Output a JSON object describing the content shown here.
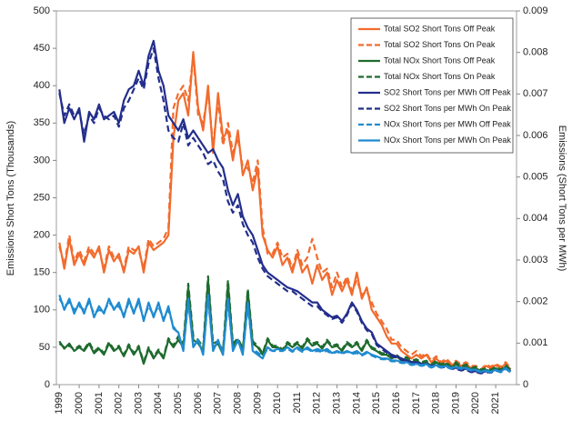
{
  "chart_data": {
    "type": "line",
    "ylabel": "Emissions Short Tons (Thousands)",
    "y2label": "Emissions (Short Tons per MWh)",
    "xlim": [
      1998.85,
      2022.05
    ],
    "xticks": [
      1999,
      2000,
      2001,
      2002,
      2003,
      2004,
      2005,
      2006,
      2007,
      2008,
      2009,
      2010,
      2011,
      2012,
      2013,
      2014,
      2015,
      2016,
      2017,
      2018,
      2019,
      2020,
      2021
    ],
    "ylim": [
      0,
      500
    ],
    "yticks": [
      0,
      50,
      100,
      150,
      200,
      250,
      300,
      350,
      400,
      450,
      500
    ],
    "y2lim": [
      0,
      0.009
    ],
    "y2ticks": [
      0,
      0.001,
      0.002,
      0.003,
      0.004,
      0.005,
      0.006,
      0.007,
      0.008,
      0.009
    ],
    "legend": "upper-right",
    "x": [
      1999,
      1999.25,
      1999.5,
      1999.75,
      2000,
      2000.25,
      2000.5,
      2000.75,
      2001,
      2001.25,
      2001.5,
      2001.75,
      2002,
      2002.25,
      2002.5,
      2002.75,
      2003,
      2003.25,
      2003.5,
      2003.75,
      2004,
      2004.25,
      2004.5,
      2004.75,
      2005,
      2005.25,
      2005.5,
      2005.75,
      2006,
      2006.25,
      2006.5,
      2006.75,
      2007,
      2007.25,
      2007.5,
      2007.75,
      2008,
      2008.25,
      2008.5,
      2008.75,
      2009,
      2009.25,
      2009.5,
      2009.75,
      2010,
      2010.25,
      2010.5,
      2010.75,
      2011,
      2011.25,
      2011.5,
      2011.75,
      2012,
      2012.25,
      2012.5,
      2012.75,
      2013,
      2013.25,
      2013.5,
      2013.75,
      2014,
      2014.25,
      2014.5,
      2014.75,
      2015,
      2015.25,
      2015.5,
      2015.75,
      2016,
      2016.25,
      2016.5,
      2016.75,
      2017,
      2017.25,
      2017.5,
      2017.75,
      2018,
      2018.25,
      2018.5,
      2018.75,
      2019,
      2019.25,
      2019.5,
      2019.75,
      2020,
      2020.25,
      2020.5,
      2020.75,
      2021,
      2021.25,
      2021.5,
      2021.75
    ],
    "series": [
      {
        "name": "Total SO2 Short Tons Off Peak",
        "color": "#f26b2d",
        "dashed": false,
        "values": [
          190,
          155,
          195,
          160,
          175,
          160,
          180,
          170,
          185,
          150,
          180,
          165,
          175,
          150,
          180,
          175,
          185,
          150,
          190,
          180,
          185,
          190,
          200,
          330,
          380,
          390,
          360,
          445,
          370,
          340,
          400,
          310,
          390,
          330,
          340,
          300,
          340,
          280,
          300,
          260,
          290,
          200,
          180,
          170,
          185,
          160,
          170,
          150,
          175,
          150,
          160,
          135,
          160,
          140,
          150,
          120,
          140,
          125,
          140,
          120,
          150,
          115,
          130,
          100,
          90,
          80,
          65,
          55,
          55,
          45,
          40,
          35,
          40,
          35,
          40,
          30,
          35,
          28,
          32,
          25,
          30,
          25,
          28,
          22,
          22,
          18,
          25,
          22,
          26,
          22,
          28,
          20
        ]
      },
      {
        "name": "Total SO2 Short Tons On Peak",
        "color": "#f26b2d",
        "dashed": true,
        "values": [
          185,
          160,
          200,
          165,
          180,
          165,
          185,
          175,
          180,
          155,
          185,
          170,
          170,
          155,
          185,
          180,
          180,
          155,
          195,
          185,
          190,
          195,
          210,
          370,
          390,
          400,
          380,
          440,
          360,
          350,
          390,
          320,
          380,
          320,
          350,
          310,
          330,
          290,
          290,
          270,
          300,
          210,
          175,
          175,
          190,
          170,
          175,
          155,
          180,
          160,
          170,
          195,
          170,
          150,
          155,
          130,
          150,
          130,
          145,
          125,
          140,
          120,
          125,
          110,
          95,
          85,
          75,
          60,
          60,
          50,
          45,
          40,
          45,
          38,
          42,
          32,
          38,
          30,
          35,
          28,
          32,
          27,
          30,
          25,
          25,
          20,
          27,
          24,
          28,
          24,
          30,
          22
        ]
      },
      {
        "name": "Total NOx Short Tons Off Peak",
        "color": "#1e6b2e",
        "dashed": false,
        "values": [
          58,
          48,
          55,
          45,
          50,
          45,
          55,
          42,
          48,
          40,
          55,
          45,
          50,
          38,
          52,
          40,
          50,
          28,
          48,
          35,
          45,
          35,
          60,
          50,
          60,
          50,
          130,
          60,
          55,
          45,
          140,
          50,
          55,
          40,
          135,
          50,
          60,
          45,
          125,
          55,
          50,
          40,
          60,
          50,
          50,
          45,
          55,
          50,
          55,
          48,
          60,
          52,
          55,
          48,
          58,
          50,
          52,
          45,
          55,
          50,
          55,
          45,
          58,
          48,
          45,
          40,
          40,
          35,
          38,
          32,
          35,
          30,
          32,
          28,
          30,
          25,
          30,
          25,
          28,
          22,
          28,
          22,
          25,
          20,
          22,
          18,
          20,
          18,
          22,
          18,
          24,
          18
        ]
      },
      {
        "name": "Total NOx Short Tons On Peak",
        "color": "#1e6b2e",
        "dashed": true,
        "values": [
          55,
          50,
          52,
          47,
          52,
          47,
          57,
          44,
          50,
          42,
          57,
          47,
          52,
          40,
          54,
          42,
          52,
          30,
          50,
          37,
          47,
          37,
          62,
          52,
          65,
          55,
          135,
          65,
          60,
          50,
          145,
          55,
          58,
          45,
          140,
          55,
          62,
          48,
          128,
          58,
          52,
          42,
          62,
          52,
          52,
          47,
          57,
          52,
          57,
          50,
          62,
          55,
          57,
          50,
          60,
          52,
          54,
          47,
          57,
          52,
          57,
          47,
          60,
          50,
          47,
          42,
          42,
          37,
          40,
          34,
          37,
          32,
          34,
          30,
          32,
          27,
          32,
          27,
          30,
          24,
          30,
          24,
          27,
          22,
          24,
          20,
          22,
          20,
          24,
          20,
          26,
          20
        ]
      },
      {
        "name": "SO2 Short Tons per MWh Off Peak",
        "color": "#232e8c",
        "dashed": false,
        "axis": "y2",
        "values": [
          0.00711,
          0.0063,
          0.00666,
          0.00639,
          0.00666,
          0.00585,
          0.00657,
          0.00639,
          0.00675,
          0.00639,
          0.00648,
          0.00657,
          0.0063,
          0.00684,
          0.00711,
          0.0072,
          0.00756,
          0.0072,
          0.00792,
          0.00828,
          0.00756,
          0.0072,
          0.00648,
          0.0063,
          0.00612,
          0.00639,
          0.00594,
          0.00612,
          0.00594,
          0.00576,
          0.00558,
          0.00567,
          0.0054,
          0.00522,
          0.00468,
          0.00432,
          0.00459,
          0.00405,
          0.00378,
          0.0036,
          0.00324,
          0.00288,
          0.0027,
          0.00261,
          0.00252,
          0.00243,
          0.00234,
          0.0023,
          0.00225,
          0.00216,
          0.00207,
          0.00198,
          0.00198,
          0.0018,
          0.00171,
          0.00162,
          0.00166,
          0.00153,
          0.00171,
          0.00198,
          0.0018,
          0.00153,
          0.00135,
          0.00126,
          0.00099,
          0.0009,
          0.00081,
          0.00072,
          0.00068,
          0.00063,
          0.00058,
          0.00054,
          0.00054,
          0.0005,
          0.0005,
          0.00045,
          0.00047,
          0.00043,
          0.00045,
          0.0004,
          0.0004,
          0.00036,
          0.00038,
          0.00032,
          0.00032,
          0.00029,
          0.00032,
          0.00031,
          0.00036,
          0.00032,
          0.0004,
          0.00032
        ]
      },
      {
        "name": "SO2 Short Tons per MWh On Peak",
        "color": "#232e8c",
        "dashed": true,
        "axis": "y2",
        "values": [
          0.00702,
          0.00648,
          0.00675,
          0.00648,
          0.00657,
          0.00603,
          0.00648,
          0.0063,
          0.00666,
          0.00648,
          0.00639,
          0.00648,
          0.00621,
          0.00666,
          0.00684,
          0.00711,
          0.00738,
          0.00711,
          0.00774,
          0.0081,
          0.00738,
          0.00684,
          0.00612,
          0.00594,
          0.00585,
          0.0063,
          0.00576,
          0.00594,
          0.00576,
          0.00558,
          0.00531,
          0.0054,
          0.00513,
          0.00495,
          0.00441,
          0.00414,
          0.00432,
          0.00387,
          0.0036,
          0.00342,
          0.00306,
          0.00279,
          0.00261,
          0.00252,
          0.00243,
          0.00234,
          0.00225,
          0.00225,
          0.00216,
          0.00207,
          0.00198,
          0.00189,
          0.00189,
          0.00176,
          0.00167,
          0.00158,
          0.00162,
          0.00149,
          0.00167,
          0.00194,
          0.00176,
          0.00149,
          0.00131,
          0.00122,
          0.00095,
          0.00086,
          0.00077,
          0.00068,
          0.00065,
          0.0006,
          0.00056,
          0.00052,
          0.00052,
          0.00049,
          0.00049,
          0.00044,
          0.00045,
          0.00041,
          0.00043,
          0.00038,
          0.00038,
          0.00034,
          0.00036,
          0.0003,
          0.0003,
          0.00027,
          0.0003,
          0.00029,
          0.00034,
          0.0003,
          0.00038,
          0.0003
        ]
      },
      {
        "name": "NOx Short Tons per MWh Off Peak",
        "color": "#1f8bd0",
        "dashed": true,
        "axis": "y2",
        "values": [
          0.00207,
          0.00189,
          0.00198,
          0.0018,
          0.00189,
          0.0018,
          0.00198,
          0.00171,
          0.0018,
          0.00176,
          0.00198,
          0.00185,
          0.00189,
          0.00167,
          0.00198,
          0.00176,
          0.00198,
          0.00158,
          0.00189,
          0.00167,
          0.00189,
          0.00158,
          0.0018,
          0.0014,
          0.00122,
          0.00086,
          0.00198,
          0.00095,
          0.00104,
          0.00077,
          0.00207,
          0.00086,
          0.00104,
          0.00077,
          0.00198,
          0.00086,
          0.00104,
          0.00077,
          0.00189,
          0.00086,
          0.00077,
          0.00068,
          0.00086,
          0.00081,
          0.00081,
          0.00081,
          0.00086,
          0.00079,
          0.00086,
          0.00079,
          0.00086,
          0.00079,
          0.00081,
          0.00079,
          0.00081,
          0.00074,
          0.00079,
          0.00074,
          0.00079,
          0.00074,
          0.00076,
          0.0007,
          0.00076,
          0.0007,
          0.00065,
          0.00061,
          0.00061,
          0.00056,
          0.00056,
          0.00052,
          0.00052,
          0.00047,
          0.00049,
          0.00045,
          0.00047,
          0.00041,
          0.00045,
          0.00041,
          0.00043,
          0.00038,
          0.00041,
          0.00038,
          0.00038,
          0.00034,
          0.00034,
          0.0003,
          0.00032,
          0.0003,
          0.00034,
          0.0003,
          0.00038,
          0.0003
        ]
      },
      {
        "name": "NOx Short Tons per MWh On Peak",
        "color": "#1f8bd0",
        "dashed": false,
        "axis": "y2",
        "values": [
          0.00216,
          0.0018,
          0.00207,
          0.00171,
          0.00198,
          0.00171,
          0.00207,
          0.00162,
          0.00189,
          0.00171,
          0.00207,
          0.0018,
          0.00198,
          0.00162,
          0.00207,
          0.00171,
          0.00207,
          0.00153,
          0.00198,
          0.00162,
          0.00198,
          0.00153,
          0.00189,
          0.00135,
          0.00126,
          0.00081,
          0.00207,
          0.0009,
          0.00108,
          0.00072,
          0.00216,
          0.00081,
          0.00108,
          0.00072,
          0.00207,
          0.00081,
          0.00108,
          0.00072,
          0.00198,
          0.00081,
          0.00072,
          0.00063,
          0.0009,
          0.00081,
          0.00086,
          0.00081,
          0.0009,
          0.00081,
          0.0009,
          0.00081,
          0.0009,
          0.00081,
          0.00086,
          0.00081,
          0.00086,
          0.00076,
          0.00081,
          0.00076,
          0.00081,
          0.00076,
          0.00081,
          0.00072,
          0.00079,
          0.00072,
          0.00068,
          0.00063,
          0.00063,
          0.00058,
          0.00058,
          0.00054,
          0.00054,
          0.00049,
          0.0005,
          0.00047,
          0.00049,
          0.00043,
          0.00047,
          0.00043,
          0.00045,
          0.0004,
          0.00043,
          0.0004,
          0.0004,
          0.00036,
          0.00036,
          0.00031,
          0.00034,
          0.00031,
          0.00036,
          0.00031,
          0.0004,
          0.00031
        ]
      }
    ]
  }
}
